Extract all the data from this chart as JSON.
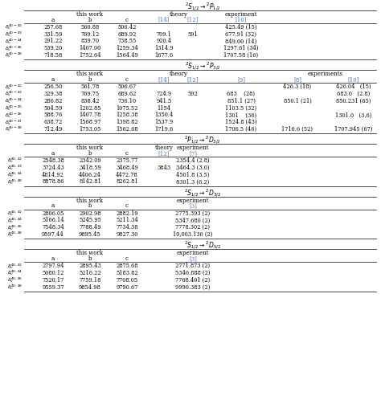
{
  "sections": [
    {
      "title": "$^{2}S_{1/2} \\rightarrow ^{2}P_{1/2}$",
      "type": "s1_p12",
      "row_labels": [
        "$\\delta_{v}^{40-42}$",
        "$\\delta_{v}^{40-43}$",
        "$\\delta_{v}^{40-44}$",
        "$\\delta_{v}^{40-46}$",
        "$\\delta_{v}^{40-48}$"
      ],
      "rows": [
        [
          "257.68",
          "560.88",
          "506.42",
          "",
          "",
          "425.49 (15)",
          "",
          ""
        ],
        [
          "331.59",
          "769.12",
          "689.92",
          "709.1",
          "591",
          "677.91 (32)",
          "",
          ""
        ],
        [
          "291.22",
          "839.70",
          "738.55",
          "920.4",
          "",
          "849.00 (14)",
          "",
          ""
        ],
        [
          "539.20",
          "1407.00",
          "1259.34",
          "1314.9",
          "",
          "1297.61 (34)",
          "",
          ""
        ],
        [
          "718.58",
          "1752.64",
          "1564.49",
          "1677.6",
          "",
          "1707.58 (16)",
          "",
          ""
        ]
      ]
    },
    {
      "title": "$^{2}S_{1/2} \\rightarrow ^{2}P_{3/2}$",
      "type": "s1_p32",
      "row_labels": [
        "$\\delta_{v}^{40-42}$",
        "$\\delta_{v}^{40-43}$",
        "$\\delta_{v}^{40-44}$",
        "$\\delta_{v}^{40-45}$",
        "$\\delta_{v}^{40-46}$",
        "$\\delta_{v}^{40-47}$",
        "$\\delta_{v}^{40-48}$"
      ],
      "rows": [
        [
          "256.50",
          "561.78",
          "506.67",
          "",
          "",
          "",
          "426.3 (18)",
          "426.04   (15)"
        ],
        [
          "329.38",
          "769.75",
          "689.62",
          "724.9",
          "592",
          "683    (28)",
          "",
          "683.0   (2.8)"
        ],
        [
          "286.82",
          "838.42",
          "736.10",
          "941.5",
          "",
          "851.1 (27)",
          "850.1 (21)",
          "850.231 (65)"
        ],
        [
          "504.59",
          "1202.85",
          "1075.52",
          "1154",
          "",
          "1103.5 (32)",
          "",
          ""
        ],
        [
          "588.76",
          "1407.78",
          "1258.38",
          "1350.4",
          "",
          "1301    (36)",
          "",
          "1301.0   (3.6)"
        ],
        [
          "638.72",
          "1568.97",
          "1398.82",
          "1537.9",
          "",
          "1524.8 (43)",
          "",
          ""
        ],
        [
          "712.49",
          "1753.05",
          "1562.68",
          "1719.6",
          "",
          "1706.5 (46)",
          "1710.6 (52)",
          "1707.945 (67)"
        ]
      ]
    },
    {
      "title": "$^{2}P_{1/2} \\rightarrow ^{2}D_{3/2}$",
      "type": "p12_d32",
      "row_labels": [
        "$\\delta_{v}^{40,42}$",
        "$\\delta_{v}^{40,43}$",
        "$\\delta_{v}^{40,44}$",
        "$\\delta_{v}^{40,48}$"
      ],
      "rows": [
        [
          "2548.38",
          "2342.09",
          "2375.77",
          "",
          "2354.4 (2.8)",
          "",
          "",
          ""
        ],
        [
          "3724.43",
          "3418.59",
          "3468.49",
          "3843",
          "3464.3 (3.0)",
          "",
          "",
          ""
        ],
        [
          "4814.92",
          "4406.24",
          "4472.78",
          "",
          "4501.8 (3.5)",
          "",
          "",
          ""
        ],
        [
          "8878.86",
          "8142.81",
          "8262.81",
          "",
          "8301.3 (6.2)",
          "",
          "",
          ""
        ]
      ]
    },
    {
      "title": "$^{2}S_{1/2} \\rightarrow ^{2}D_{3/2}$",
      "type": "s1_d32",
      "row_labels": [
        "$\\delta_{v}^{40,42}$",
        "$\\delta_{v}^{40,44}$",
        "$\\delta_{v}^{40,46}$",
        "$\\delta_{v}^{40,48}$"
      ],
      "rows": [
        [
          "2806.05",
          "2902.98",
          "2882.19",
          "",
          "2775.393 (2)",
          "",
          "",
          ""
        ],
        [
          "5106.14",
          "5245.95",
          "5211.34",
          "",
          "5347.680 (2)",
          "",
          "",
          ""
        ],
        [
          "7548.34",
          "7788.49",
          "7734.38",
          "",
          "7778.302 (2)",
          "",
          "",
          ""
        ],
        [
          "9597.44",
          "9895.45",
          "9827.30",
          "",
          "10,003.130 (2)",
          "",
          "",
          ""
        ]
      ]
    },
    {
      "title": "$^{2}S_{1/2} \\rightarrow ^{2}D_{5/2}$",
      "type": "s1_d52",
      "row_labels": [
        "$\\delta_{v}^{40,42}$",
        "$\\delta_{v}^{40,44}$",
        "$\\delta_{v}^{40,46}$",
        "$\\delta_{v}^{40,48}$"
      ],
      "rows": [
        [
          "2797.94",
          "2895.43",
          "2875.68",
          "",
          "2771.873 (2)",
          "",
          "",
          ""
        ],
        [
          "5080.12",
          "5216.22",
          "5183.82",
          "",
          "5340.888 (2)",
          "",
          "",
          ""
        ],
        [
          "7520.17",
          "7759.18",
          "7708.05",
          "",
          "7768.401 (2)",
          "",
          "",
          ""
        ],
        [
          "9559.37",
          "9854.98",
          "9790.67",
          "",
          "9990.383 (2)",
          "",
          "",
          ""
        ]
      ]
    }
  ],
  "bg_color": "#ffffff",
  "text_color": "#000000",
  "link_color": "#4472c4",
  "font_size": 4.8,
  "title_font_size": 5.5,
  "header_font_size": 5.0
}
